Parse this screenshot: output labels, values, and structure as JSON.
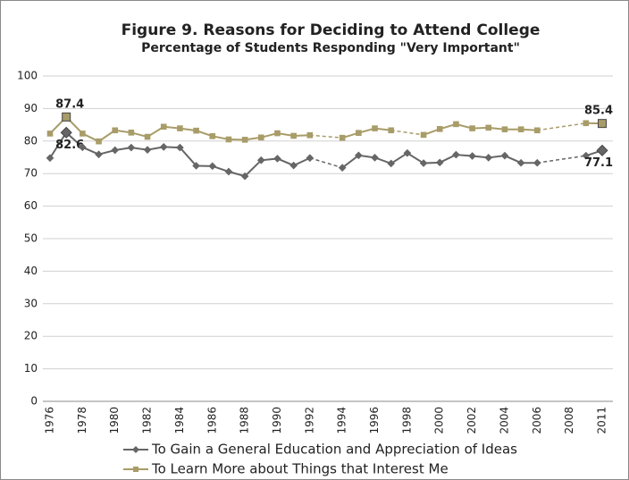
{
  "chart_data": {
    "type": "line",
    "title": "Figure 9.  Reasons for Deciding to Attend College",
    "subtitle": "Percentage of Students Responding \"Very Important\"",
    "categories": [
      "1976",
      null,
      "1978",
      null,
      "1980",
      null,
      "1982",
      null,
      "1984",
      null,
      "1986",
      null,
      "1988",
      null,
      "1990",
      null,
      "1992",
      null,
      "1994",
      null,
      "1996",
      null,
      "1998",
      null,
      "2000",
      null,
      "2002",
      null,
      "2004",
      null,
      "2006",
      null,
      "2008",
      null,
      "2011"
    ],
    "series": [
      {
        "name": "To Gain a General Education and Appreciation of Ideas",
        "color": "#666666",
        "marker": "diamond",
        "values": [
          74.8,
          82.6,
          78.1,
          75.9,
          77.2,
          78.0,
          77.3,
          78.2,
          78.0,
          72.4,
          72.3,
          70.6,
          69.2,
          74.1,
          74.6,
          72.5,
          74.8,
          null,
          71.8,
          75.6,
          74.9,
          73.1,
          76.3,
          73.2,
          73.4,
          75.8,
          75.4,
          74.9,
          75.5,
          73.3,
          73.3,
          null,
          null,
          75.5,
          77.1
        ],
        "value_labels": [
          null,
          "82.6",
          null,
          null,
          null,
          null,
          null,
          null,
          null,
          null,
          null,
          null,
          null,
          null,
          null,
          null,
          null,
          null,
          null,
          null,
          null,
          null,
          null,
          null,
          null,
          null,
          null,
          null,
          null,
          null,
          null,
          null,
          null,
          null,
          "77.1"
        ]
      },
      {
        "name": "To Learn More about Things that Interest Me",
        "color": "#a89c68",
        "marker": "square",
        "values": [
          82.3,
          87.4,
          82.3,
          79.9,
          83.3,
          82.6,
          81.3,
          84.4,
          83.9,
          83.2,
          81.5,
          80.5,
          80.4,
          81.1,
          82.4,
          81.6,
          81.8,
          null,
          81.0,
          82.5,
          83.9,
          83.3,
          null,
          81.9,
          83.7,
          85.2,
          83.9,
          84.1,
          83.6,
          83.6,
          83.3,
          null,
          null,
          85.5,
          85.4
        ],
        "value_labels": [
          null,
          "87.4",
          null,
          null,
          null,
          null,
          null,
          null,
          null,
          null,
          null,
          null,
          null,
          null,
          null,
          null,
          null,
          null,
          null,
          null,
          null,
          null,
          null,
          null,
          null,
          null,
          null,
          null,
          null,
          null,
          null,
          null,
          null,
          null,
          "85.4"
        ]
      }
    ],
    "ylim": [
      0,
      100
    ],
    "yticks": [
      0,
      10,
      20,
      30,
      40,
      50,
      60,
      70,
      80,
      90,
      100
    ],
    "grid": true,
    "legend": "bottom"
  }
}
